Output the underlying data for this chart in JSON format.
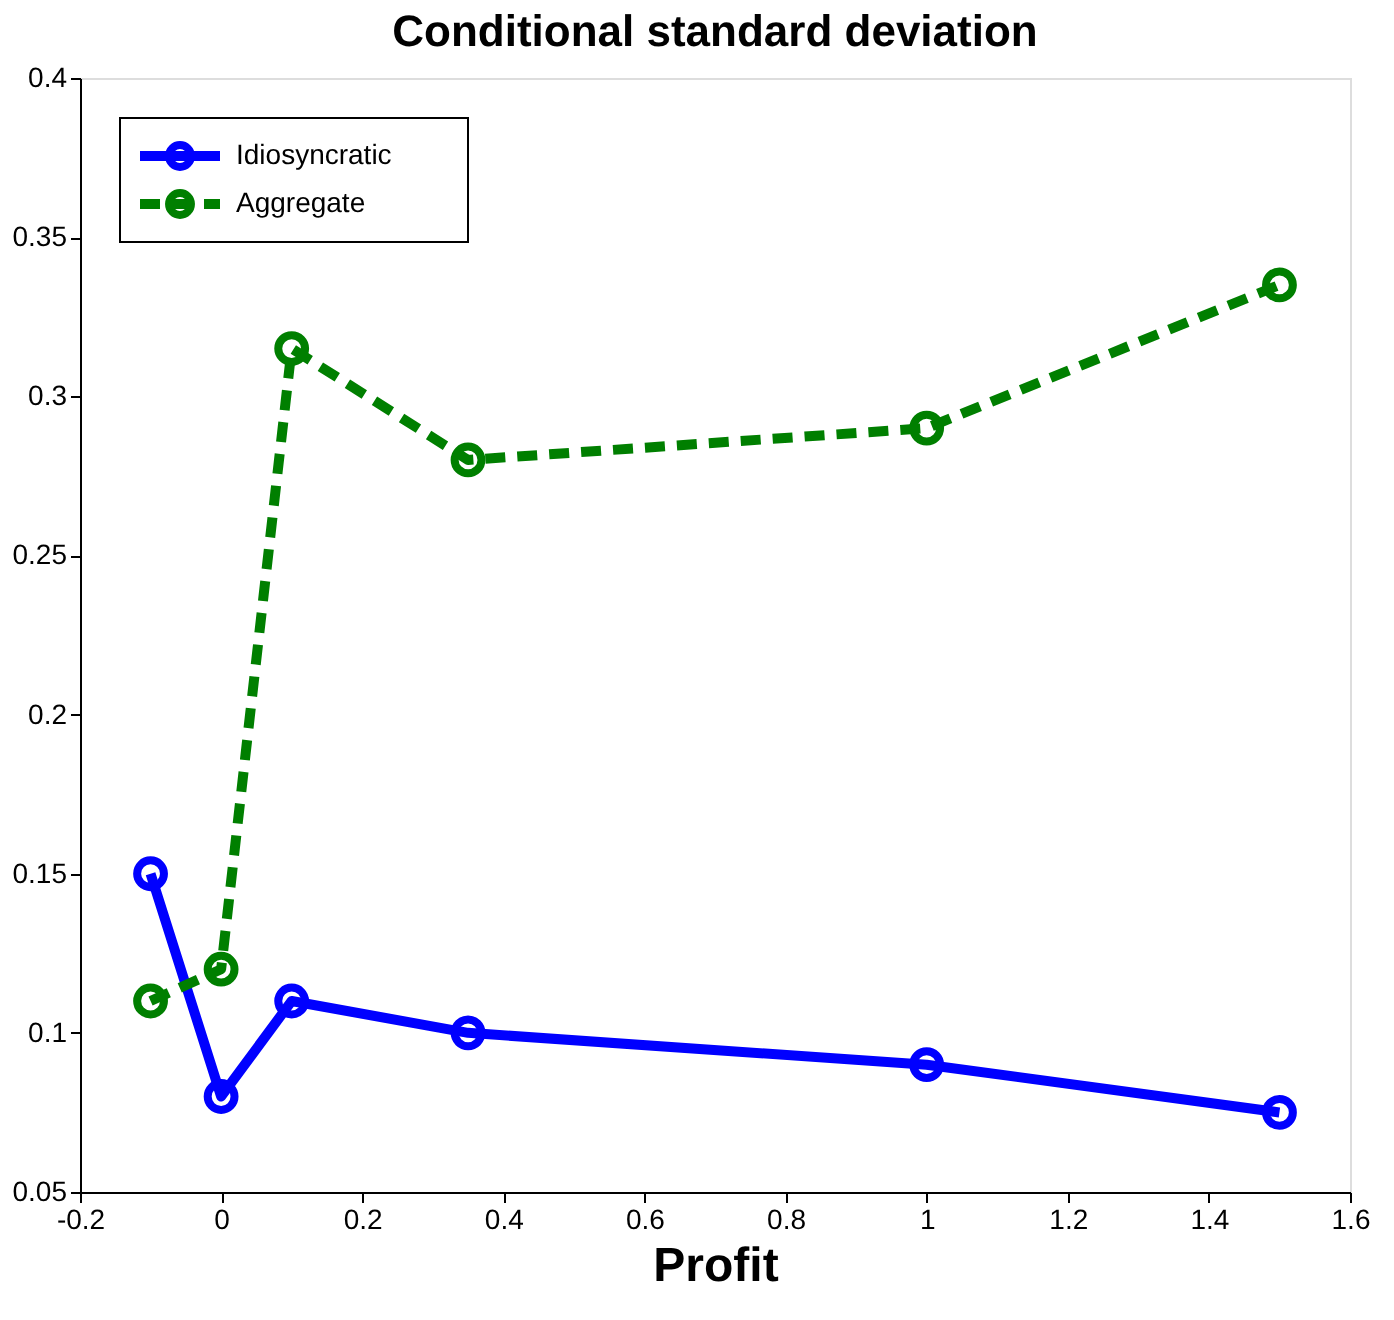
{
  "chart_data": {
    "type": "line",
    "title": "Conditional standard deviation",
    "xlabel": "Profit",
    "x": [
      -0.1,
      0,
      0.1,
      0.35,
      1,
      1.5
    ],
    "series": [
      {
        "name": "Idiosyncratic",
        "color": "#0000ff",
        "values": [
          0.15,
          0.08,
          0.11,
          0.1,
          0.09,
          0.075
        ],
        "line_style": "solid"
      },
      {
        "name": "Aggregate",
        "color": "#007f00",
        "values": [
          0.11,
          0.12,
          0.315,
          0.28,
          0.29,
          0.335
        ],
        "line_style": "dashed"
      }
    ],
    "xlim": [
      -0.2,
      1.6
    ],
    "xticks": [
      -0.2,
      0,
      0.2,
      0.4,
      0.6,
      0.8,
      1,
      1.2,
      1.4,
      1.6
    ],
    "ylim": [
      0.05,
      0.4
    ],
    "yticks": [
      0.05,
      0.1,
      0.15,
      0.2,
      0.25,
      0.3,
      0.35,
      0.4
    ],
    "grid": false,
    "legend": "top left",
    "marker": "circle"
  }
}
